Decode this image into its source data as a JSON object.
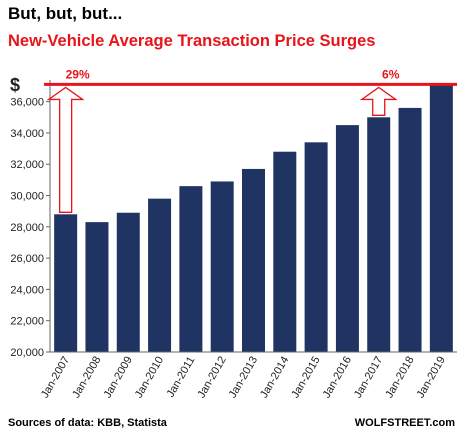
{
  "chart_data": {
    "type": "bar",
    "title": "But, but, but...",
    "subtitle": "New-Vehicle Average Transaction  Price Surges",
    "ylabel": "$",
    "xlabel": "",
    "ylim": [
      20000,
      37000
    ],
    "yticks": [
      "20,000",
      "22,000",
      "24,000",
      "26,000",
      "28,000",
      "30,000",
      "32,000",
      "34,000",
      "36,000"
    ],
    "ytick_values": [
      20000,
      22000,
      24000,
      26000,
      28000,
      30000,
      32000,
      34000,
      36000
    ],
    "categories": [
      "Jan-2007",
      "Jan-2008",
      "Jan-2009",
      "Jan-2010",
      "Jan-2011",
      "Jan-2012",
      "Jan-2013",
      "Jan-2014",
      "Jan-2015",
      "Jan-2016",
      "Jan-2017",
      "Jan-2018",
      "Jan-2019"
    ],
    "values": [
      28800,
      28300,
      28900,
      29800,
      30600,
      30900,
      31700,
      32800,
      33400,
      34500,
      35000,
      35600,
      37100
    ],
    "reference_line": 37100,
    "annotations": [
      {
        "text": "29%",
        "from_category": "Jan-2007",
        "color": "#e8141b"
      },
      {
        "text": "6%",
        "from_category": "Jan-2017",
        "color": "#e8141b"
      }
    ],
    "grid": false,
    "legend": "none",
    "colors": {
      "bar": "#1f3463",
      "accent": "#e8141b",
      "axis": "#666666"
    }
  },
  "footer": {
    "source": "Sources of data: KBB, Statista",
    "brand": "WOLFSTREET.com"
  }
}
